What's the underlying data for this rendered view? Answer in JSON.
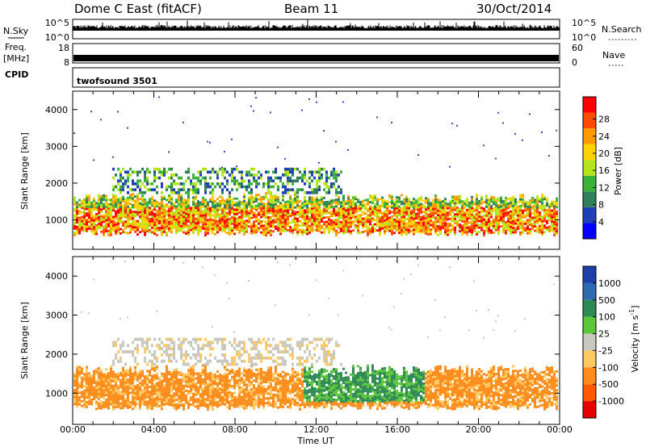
{
  "header": {
    "title": "Dome C East (fitACF)",
    "beam": "Beam 11",
    "date": "30/Oct/2014"
  },
  "top_panels": {
    "nsky_label": "N.Sky",
    "nsearch_label": "N.Search",
    "nsky_ticks": [
      "10^5",
      "10^0"
    ],
    "nsky_right_ticks": [
      "10^5",
      "10^0"
    ],
    "freq_label": "Freq.",
    "freq_unit": "[MHz]",
    "freq_ticks": [
      "18",
      "8"
    ],
    "nave_label": "Nave",
    "nave_ticks": [
      "60",
      "0"
    ],
    "cpid_label": "CPID",
    "cpid_value": "twofsound 3501"
  },
  "chart_data": [
    {
      "type": "heatmap",
      "panel": "power",
      "ylabel": "Slant Range [km]",
      "xlabel": "",
      "x_ticks": [
        "00:00",
        "04:00",
        "08:00",
        "12:00",
        "16:00",
        "20:00",
        "00:00"
      ],
      "y_ticks": [
        "1000",
        "2000",
        "3000",
        "4000"
      ],
      "ylim": [
        200,
        4500
      ],
      "colorbar": {
        "label": "Power [dB]",
        "ticks": [
          "4",
          "8",
          "12",
          "16",
          "20",
          "24",
          "28"
        ],
        "colors": [
          "#0000ff",
          "#1e3fb8",
          "#2e7f5a",
          "#3bb33b",
          "#b5e61d",
          "#ffd200",
          "#ff9a00",
          "#ff4a00",
          "#ff0000"
        ]
      }
    },
    {
      "type": "heatmap",
      "panel": "velocity",
      "ylabel": "Slant Range [km]",
      "xlabel": "Time UT",
      "x_ticks": [
        "00:00",
        "04:00",
        "08:00",
        "12:00",
        "16:00",
        "20:00",
        "00:00"
      ],
      "y_ticks": [
        "1000",
        "2000",
        "3000",
        "4000"
      ],
      "ylim": [
        200,
        4500
      ],
      "colorbar": {
        "label": "Velocity  [m s",
        "label_sup": "-1",
        "label_end": "]",
        "ticks": [
          "1000",
          "500",
          "100",
          "25",
          "-25",
          "-100",
          "-500",
          "-1000"
        ],
        "colors": [
          "#1f3fa8",
          "#2e6ab0",
          "#2e8a55",
          "#5cc63a",
          "#c8c8bf",
          "#ffc860",
          "#ff8c1a",
          "#ff5a00",
          "#e60000"
        ]
      }
    }
  ]
}
